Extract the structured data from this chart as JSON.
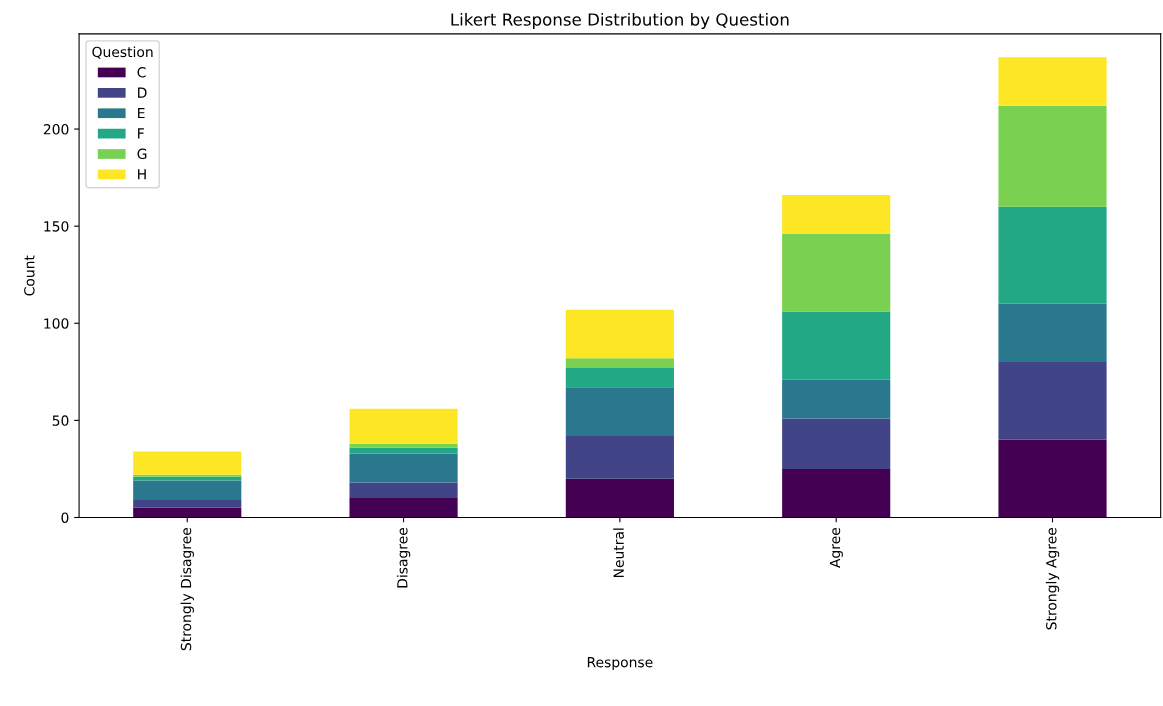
{
  "chart_data": {
    "type": "bar",
    "stacked": true,
    "title": "Likert Response Distribution by Question",
    "xlabel": "Response",
    "ylabel": "Count",
    "legend_title": "Question",
    "legend": "top left",
    "categories": [
      "Strongly Disagree",
      "Disagree",
      "Neutral",
      "Agree",
      "Strongly Agree"
    ],
    "series": [
      {
        "name": "C",
        "color": "#440154",
        "values": [
          5,
          10,
          20,
          25,
          40
        ]
      },
      {
        "name": "D",
        "color": "#414487",
        "values": [
          4,
          8,
          22,
          26,
          40
        ]
      },
      {
        "name": "E",
        "color": "#2a788e",
        "values": [
          10,
          15,
          25,
          20,
          30
        ]
      },
      {
        "name": "F",
        "color": "#22a884",
        "values": [
          2,
          3,
          10,
          35,
          50
        ]
      },
      {
        "name": "G",
        "color": "#7ad151",
        "values": [
          1,
          2,
          5,
          40,
          52
        ]
      },
      {
        "name": "H",
        "color": "#fde725",
        "values": [
          12,
          18,
          25,
          20,
          25
        ]
      }
    ],
    "ylim": [
      0,
      249
    ],
    "yticks": [
      0,
      50,
      100,
      150,
      200
    ],
    "grid": false
  }
}
